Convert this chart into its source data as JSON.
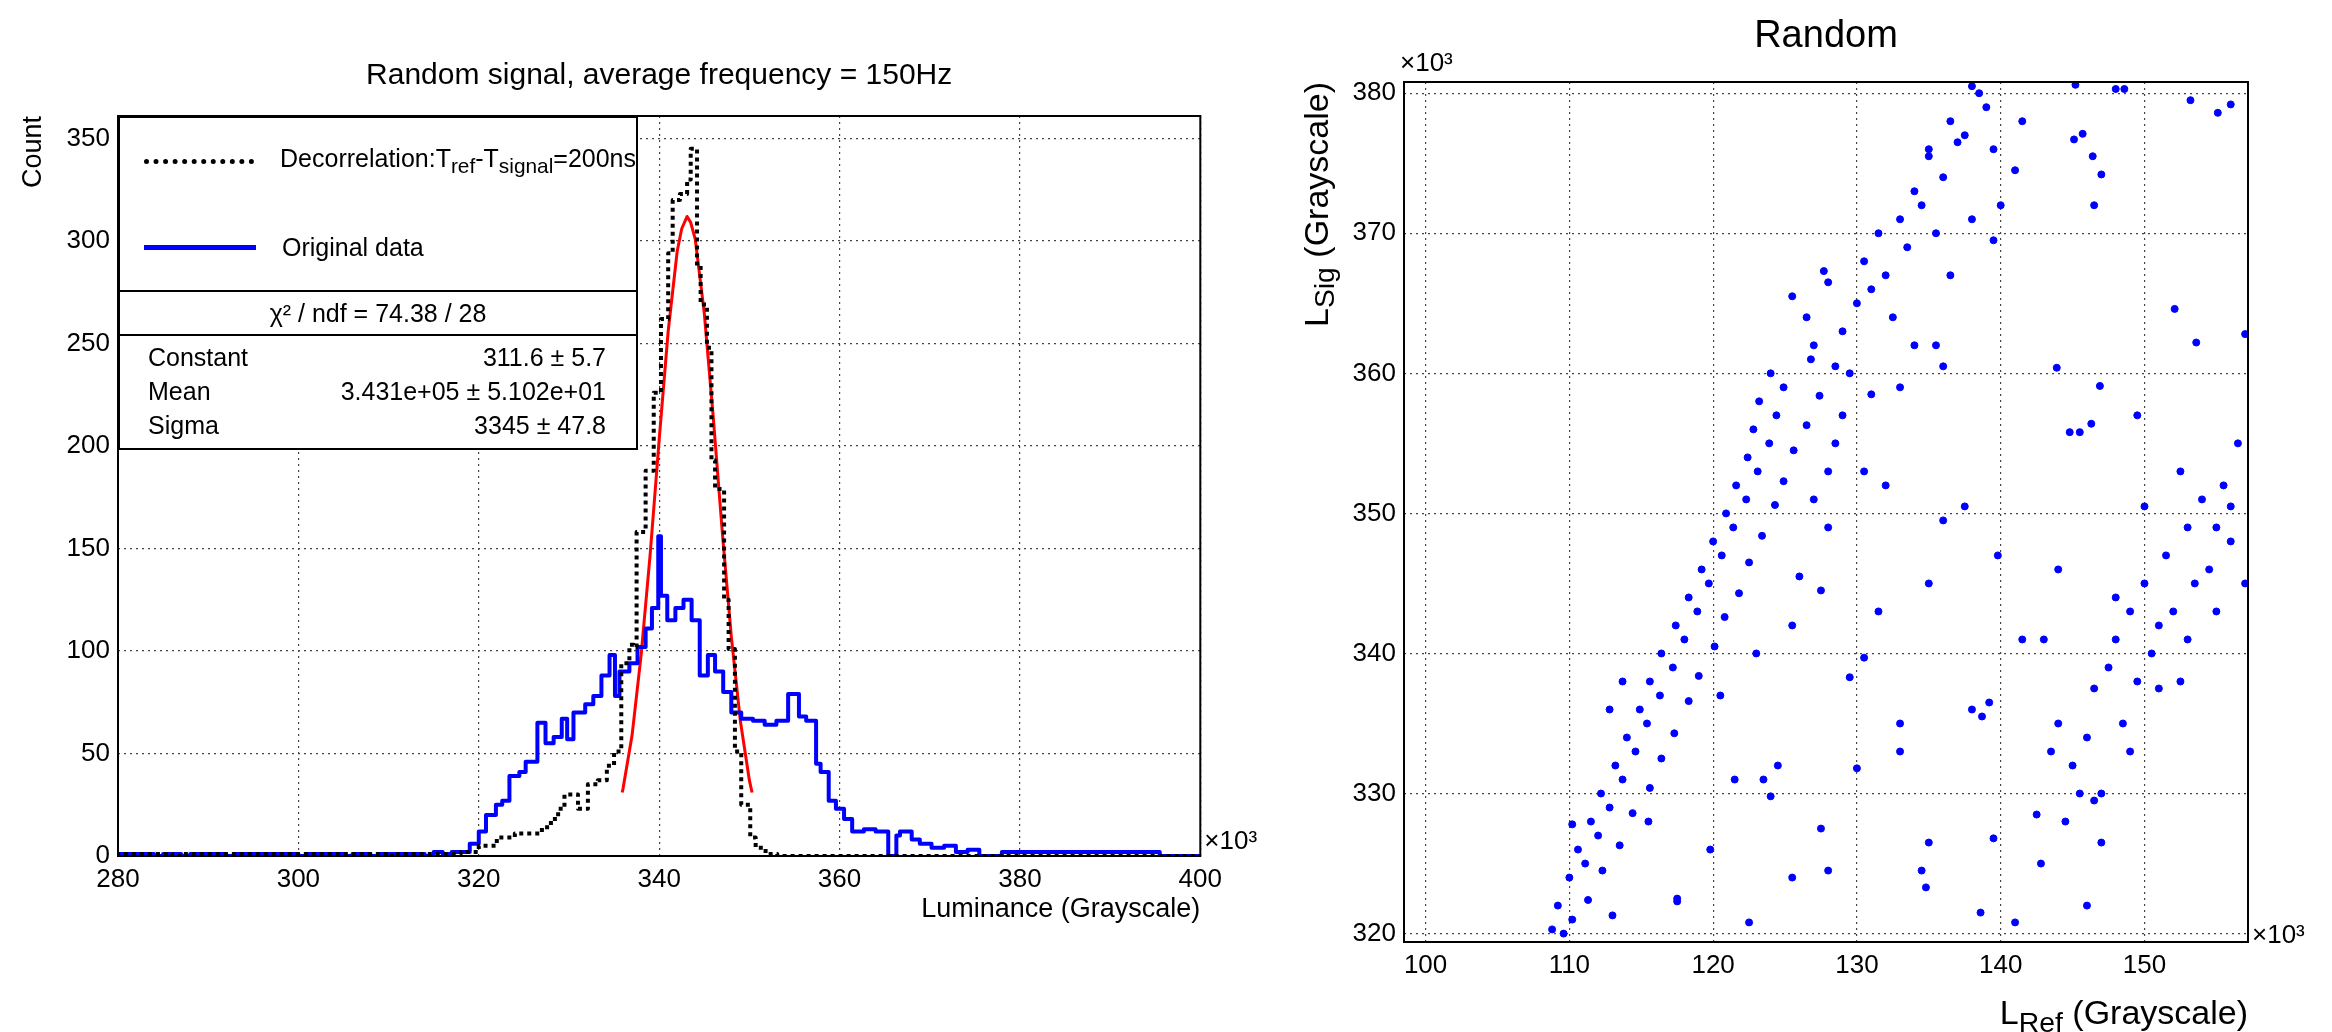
{
  "chart_data": [
    {
      "type": "step",
      "title": "Random signal, average frequency = 150Hz",
      "xlabel": "Luminance (Grayscale)",
      "ylabel": "Count",
      "xlim": [
        280,
        400
      ],
      "ylim": [
        0,
        361
      ],
      "xticks": [
        280,
        300,
        320,
        340,
        360,
        380,
        400
      ],
      "yticks": [
        0,
        50,
        100,
        150,
        200,
        250,
        300,
        350
      ],
      "grid": true,
      "legend": "top left",
      "series": [
        {
          "name": "Decorrelation:T$_{ref}$-T$_{signal}$=200ns",
          "color": "#000000",
          "line_style": "dotted",
          "x": [
            280,
            286,
            287,
            310,
            311,
            318,
            320,
            322,
            324,
            325,
            327,
            328,
            328.8,
            329.5,
            331,
            332.1,
            333.2,
            334.2,
            335,
            335.8,
            336.7,
            337.2,
            337.5,
            338.5,
            339.4,
            340.2,
            341,
            341.5,
            342.3,
            343.1,
            343.5,
            344.2,
            344.6,
            345.3,
            345.8,
            346.2,
            347.2,
            347.7,
            348.4,
            349.1,
            350.1,
            350.7,
            351.8,
            353.1,
            355,
            400
          ],
          "values": [
            0,
            1,
            0,
            1,
            0,
            1,
            2,
            5,
            9,
            11,
            11,
            14,
            18,
            23,
            30,
            23,
            35,
            37,
            44,
            51,
            94,
            103,
            102,
            158,
            188,
            226,
            262,
            294,
            320,
            323,
            330,
            345,
            288,
            269,
            248,
            193,
            179,
            125,
            101,
            51,
            25,
            9,
            4,
            1,
            0,
            0
          ]
        },
        {
          "name": "Original data",
          "color": "#0000ff",
          "line_style": "solid",
          "x": [
            280,
            284,
            285,
            287,
            288,
            292,
            293,
            300,
            301,
            305,
            306,
            308,
            309,
            314,
            315,
            316,
            317,
            318,
            319,
            320,
            320.8,
            321.9,
            322.6,
            323.4,
            324.5,
            325.2,
            326.5,
            327.4,
            328.3,
            329.2,
            329.8,
            330.5,
            331.8,
            332.7,
            333.6,
            334.5,
            335.1,
            335.6,
            336.7,
            337.6,
            338.5,
            339.2,
            339.9,
            340.2,
            340.9,
            341.8,
            342.7,
            343.6,
            344.5,
            345.4,
            346.2,
            347.1,
            348,
            349.1,
            350.4,
            351.7,
            353,
            354.3,
            355.5,
            356.3,
            357.4,
            357.9,
            358.8,
            359.6,
            360.5,
            361.4,
            362.7,
            364,
            365.4,
            366.3,
            366.7,
            368,
            368.9,
            370.2,
            371.6,
            372.9,
            374.2,
            375.5,
            378,
            395.5,
            396.5,
            400
          ],
          "values": [
            0,
            1,
            0,
            1,
            0,
            1,
            0,
            1,
            0,
            1,
            0,
            1,
            0,
            1,
            0,
            2,
            1,
            2,
            2,
            6,
            12,
            20,
            25,
            27,
            39,
            41,
            46,
            65,
            55,
            58,
            67,
            57,
            70,
            74,
            78,
            88,
            98,
            78,
            90,
            94,
            102,
            111,
            121,
            156,
            127,
            115,
            121,
            125,
            115,
            88,
            98,
            90,
            80,
            70,
            67,
            66,
            64,
            66,
            79,
            68,
            66,
            45,
            41,
            27,
            23,
            18,
            12,
            13,
            12,
            0,
            10,
            12,
            8,
            6,
            4,
            5,
            2,
            3,
            0,
            2,
            0,
            0
          ]
        },
        {
          "type": "line",
          "color": "#ff0000",
          "line_style": "solid",
          "x": [
            335.9,
            336,
            337,
            338,
            339,
            340,
            341,
            342,
            342.5,
            343.1,
            343.5,
            344,
            345,
            346,
            347,
            348,
            349,
            350,
            350.3
          ],
          "values": [
            31,
            33,
            59,
            98,
            147,
            203,
            256,
            295,
            306,
            312,
            309,
            301,
            265,
            214,
            158,
            107,
            66,
            37,
            31
          ]
        }
      ],
      "annotations": [
        "χ² / ndf = 74.38 / 28",
        "Constant",
        "311.6 ± 5.7",
        "Mean",
        "3.431e+05 ± 5.102e+01",
        "Sigma",
        "3345 ± 47.8",
        "×10³"
      ]
    },
    {
      "type": "scatter",
      "title": "Random",
      "xlabel": "L$_{Ref}$ (Grayscale)",
      "ylabel": "L$_{Sig}$ (Grayscale)",
      "xlim": [
        98.5,
        157.2
      ],
      "ylim": [
        319.4,
        380.8
      ],
      "xticks": [
        100,
        110,
        120,
        130,
        140,
        150
      ],
      "yticks": [
        320,
        330,
        340,
        350,
        360,
        370,
        380
      ],
      "grid": true,
      "marker": "circle",
      "series": [
        {
          "color": "#0000ff",
          "x": [
            109.6,
            108.8,
            109.2,
            111.3,
            110.2,
            110,
            112.3,
            111.1,
            110.6,
            113.5,
            112,
            111.5,
            114.4,
            112.8,
            112.2,
            115.6,
            113.7,
            113.2,
            116.4,
            114.6,
            114,
            117.3,
            115.4,
            114.9,
            118.3,
            116.3,
            115.6,
            119,
            117.2,
            116.4,
            120.1,
            118,
            117.4,
            120.8,
            118.9,
            118.3,
            121.8,
            119.7,
            119.2,
            122.5,
            120.6,
            120,
            123.4,
            121.4,
            120.9,
            124.3,
            122.3,
            121.6,
            124.9,
            123.1,
            122.4,
            125.6,
            123.9,
            122.8,
            126.5,
            124.4,
            123.2,
            127.4,
            124.9,
            124,
            126.8,
            128.5,
            112.8,
            115.5,
            117.5,
            119.8,
            120.5,
            123,
            125.5,
            127.5,
            128,
            121.5,
            113.7,
            110.2,
            124.5,
            127.7,
            125.5,
            126.5,
            127,
            128,
            129,
            129.5,
            130,
            130.5,
            131,
            131.5,
            132,
            132.5,
            133,
            133.5,
            134,
            134.5,
            135,
            135.5,
            136,
            136.5,
            137,
            137.5,
            138,
            138.5,
            139,
            139.5,
            140,
            141.5,
            141,
            131,
            133,
            134,
            135.5,
            136.5,
            138,
            139.5,
            136,
            127,
            130.5,
            128.5,
            132,
            129,
            135,
            145.2,
            145.1,
            145.7,
            146.4,
            146.5,
            147,
            148,
            148.6,
            153.2,
            155.1,
            156,
            152.1,
            153.6,
            157,
            146.9,
            149.5,
            143.9,
            144.8,
            145.5,
            146.3,
            144,
            145,
            146,
            146.5,
            147,
            147.5,
            148,
            148.5,
            149,
            149.5,
            150,
            150.5,
            151,
            151.5,
            152,
            152.5,
            153,
            153.5,
            154,
            154.5,
            155,
            155.5,
            156,
            156.5,
            157,
            143.5,
            145.5,
            148,
            149,
            151,
            153,
            155,
            150,
            152.5,
            156,
            142.5,
            144.5,
            146.5,
            147,
            128,
            127.5,
            123.5,
            124,
            125.5,
            130,
            130.5,
            133,
            133,
            134.5,
            135,
            134.8,
            138,
            138.7,
            139.2,
            139.5,
            138.6,
            141,
            142.8,
            146,
            136,
            139.8,
            137.5,
            141.5,
            143,
            144,
            131.5,
            135,
            122.5,
            117.5,
            113,
            128,
            126,
            129.5
          ],
          "values": [
            320,
            320.3,
            322,
            322.4,
            321,
            324,
            324.5,
            325,
            326,
            326.3,
            327,
            328,
            328.6,
            329,
            330,
            330.4,
            331,
            332,
            332.5,
            333,
            334,
            334.3,
            335,
            336,
            336.6,
            337,
            338,
            338.4,
            339,
            340,
            340.5,
            341,
            342,
            342.6,
            343,
            344,
            344.3,
            345,
            346,
            346.5,
            347,
            348,
            348.4,
            349,
            350,
            350.6,
            351,
            352,
            352.3,
            353,
            354,
            354.5,
            355,
            356,
            356.3,
            357,
            358,
            358.4,
            359,
            360,
            361,
            360.5,
            336,
            328,
            322.5,
            326,
            337,
            340,
            342,
            344.5,
            349,
            331,
            338,
            327.8,
            332,
            367.3,
            365.5,
            364,
            362,
            366.5,
            363,
            360,
            365,
            368,
            366,
            370,
            367,
            364,
            371,
            369,
            373,
            372,
            376,
            370,
            374,
            378,
            376.5,
            377,
            380.5,
            380,
            379,
            376,
            372,
            378,
            374.5,
            358.5,
            359,
            362,
            362,
            367,
            371,
            369.5,
            360.5,
            351,
            353,
            355,
            352,
            357,
            375.5,
            380.6,
            376.7,
            377.1,
            375.5,
            372,
            374.2,
            380.3,
            380.3,
            379.5,
            378.6,
            379.2,
            364.6,
            362.2,
            362.8,
            359.1,
            357,
            360.4,
            355.8,
            355.8,
            356.4,
            335,
            332,
            334,
            337.5,
            330,
            339,
            341,
            335,
            343,
            338,
            345,
            340,
            342,
            347,
            343,
            338,
            349,
            345,
            351,
            346,
            349,
            352,
            348,
            355,
            345,
            333,
            330,
            344,
            333,
            337.5,
            341,
            343,
            350.5,
            353,
            350.5,
            328.5,
            328,
            329.5,
            326.5,
            324.5,
            327.5,
            331,
            329.8,
            324,
            331.8,
            339.7,
            335,
            333,
            324.5,
            326.5,
            323.3,
            336,
            335.5,
            336.5,
            326.8,
            321.5,
            320.8,
            325,
            322,
            349.5,
            347,
            350.5,
            341,
            341,
            346,
            343,
            345,
            320.8,
            322.3,
            321.3,
            353,
            345.5,
            338.3
          ]
        }
      ],
      "annotations": [
        "×10³",
        "×10³"
      ]
    }
  ]
}
